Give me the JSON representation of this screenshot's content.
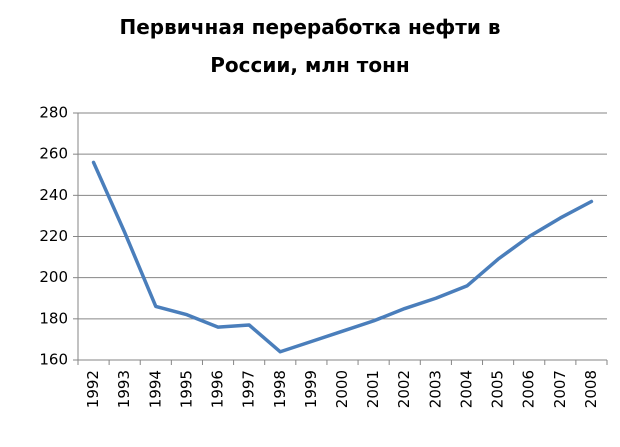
{
  "chart_data": {
    "type": "line",
    "title": "Первичная переработка нефти в России, млн тонн",
    "categories": [
      "1992",
      "1993",
      "1994",
      "1995",
      "1996",
      "1997",
      "1998",
      "1999",
      "2000",
      "2001",
      "2002",
      "2003",
      "2004",
      "2005",
      "2006",
      "2007",
      "2008"
    ],
    "series": [
      {
        "color": "#4a7ebb",
        "values": [
          256,
          222,
          186,
          182,
          176,
          177,
          164,
          169,
          174,
          179,
          185,
          190,
          196,
          209,
          220,
          229,
          237
        ]
      }
    ],
    "ylim": [
      160,
      280
    ],
    "yticks": [
      160,
      180,
      200,
      220,
      240,
      260,
      280
    ],
    "grid": true
  }
}
